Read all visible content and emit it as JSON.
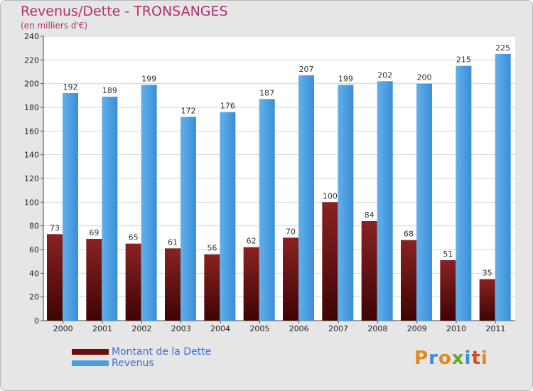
{
  "title": "Revenus/Dette - TRONSANGES",
  "subtitle": "(en milliers d'€)",
  "legend": {
    "debt_label": "Montant de la Dette",
    "revenue_label": "Revenus"
  },
  "logo": {
    "text": "Proxiti"
  },
  "colors": {
    "debt": "#7a1a1a",
    "debt_dark": "#4a0606",
    "revenue": "#5aa8e6",
    "revenue_dark": "#2a80cc",
    "plot_bg": "#ffffff",
    "frame_bg": "#e6e6e6",
    "title": "#b0306a",
    "legend_text": "#3a6fd8"
  },
  "chart_data": {
    "type": "bar",
    "categories": [
      "2000",
      "2001",
      "2002",
      "2003",
      "2004",
      "2005",
      "2006",
      "2007",
      "2008",
      "2009",
      "2010",
      "2011"
    ],
    "series": [
      {
        "name": "Montant de la Dette",
        "values": [
          73,
          69,
          65,
          61,
          56,
          62,
          70,
          100,
          84,
          68,
          51,
          35
        ]
      },
      {
        "name": "Revenus",
        "values": [
          192,
          189,
          199,
          172,
          176,
          187,
          207,
          199,
          202,
          200,
          215,
          225
        ]
      }
    ],
    "title": "Revenus/Dette - TRONSANGES",
    "ylabel": "(en milliers d'€)",
    "ylim": [
      0,
      240
    ],
    "yticks": [
      0,
      20,
      40,
      60,
      80,
      100,
      120,
      140,
      160,
      180,
      200,
      220,
      240
    ],
    "grid": true,
    "legend_position": "bottom-left"
  }
}
